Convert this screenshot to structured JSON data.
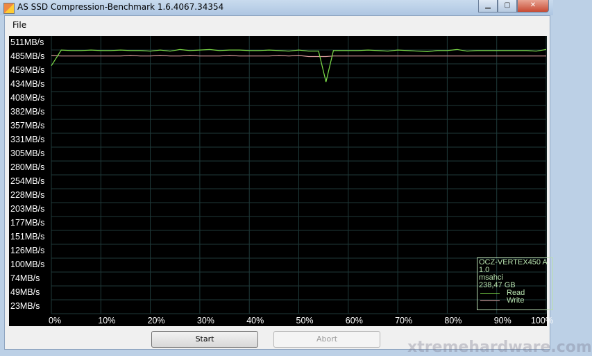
{
  "window": {
    "title": "AS SSD Compression-Benchmark 1.6.4067.34354",
    "minimize": "▁",
    "maximize": "▢",
    "close": "✕"
  },
  "menu": {
    "file": "File"
  },
  "legend": {
    "device": "OCZ-VERTEX450 A",
    "firmware": "1.0",
    "driver": "msahci",
    "size": "238,47 GB",
    "read": "Read",
    "write": "Write"
  },
  "buttons": {
    "start": "Start",
    "abort": "Abort"
  },
  "watermark": "xtremehardware.com",
  "chart_data": {
    "type": "line",
    "ytick_labels": [
      "511MB/s",
      "485MB/s",
      "459MB/s",
      "434MB/s",
      "408MB/s",
      "382MB/s",
      "357MB/s",
      "331MB/s",
      "305MB/s",
      "280MB/s",
      "254MB/s",
      "228MB/s",
      "203MB/s",
      "177MB/s",
      "151MB/s",
      "126MB/s",
      "100MB/s",
      "74MB/s",
      "49MB/s",
      "23MB/s"
    ],
    "xtick_labels": [
      "0%",
      "10%",
      "20%",
      "30%",
      "40%",
      "50%",
      "60%",
      "70%",
      "80%",
      "90%",
      "100%"
    ],
    "ylim": [
      23,
      511
    ],
    "xlim": [
      0,
      100
    ],
    "grid": true,
    "legend_position": "bottom-right",
    "x": [
      0,
      2,
      4,
      6,
      8,
      10,
      12,
      14,
      16,
      18,
      20,
      22,
      24,
      26,
      28,
      30,
      32,
      34,
      36,
      38,
      40,
      42,
      44,
      46,
      48,
      50,
      52,
      54,
      55.5,
      57,
      58,
      60,
      62,
      64,
      66,
      68,
      70,
      72,
      74,
      76,
      78,
      80,
      82,
      84,
      86,
      88,
      90,
      92,
      94,
      96,
      98,
      100
    ],
    "series": [
      {
        "name": "Read",
        "color": "#7ee04a",
        "values": [
          469,
          498,
          497,
          497,
          498,
          497,
          497,
          498,
          497,
          497,
          496,
          498,
          496,
          499,
          497,
          498,
          499,
          497,
          498,
          498,
          497,
          497,
          498,
          497,
          496,
          498,
          496,
          496,
          439,
          497,
          497,
          497,
          497,
          498,
          497,
          496,
          498,
          497,
          496,
          495,
          497,
          497,
          499,
          496,
          497,
          497,
          497,
          497,
          497,
          497,
          496,
          499
        ]
      },
      {
        "name": "Write",
        "color": "#e0a0a0",
        "values": [
          488,
          487,
          487,
          487,
          487,
          487,
          487,
          487,
          488,
          487,
          487,
          488,
          487,
          487,
          488,
          487,
          487,
          487,
          488,
          487,
          487,
          487,
          487,
          488,
          487,
          488,
          486,
          486,
          486,
          487,
          487,
          487,
          487,
          487,
          487,
          487,
          487,
          487,
          487,
          487,
          487,
          487,
          487,
          487,
          487,
          487,
          487,
          487,
          487,
          487,
          487,
          487
        ]
      }
    ]
  }
}
